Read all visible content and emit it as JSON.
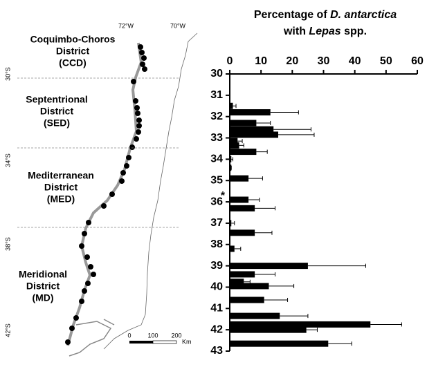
{
  "chart_data": {
    "type": "bar",
    "orientation": "horizontal",
    "title": {
      "line1": [
        "Percentage of ",
        "D. antarctica"
      ],
      "line2": [
        "with ",
        "Lepas",
        " spp."
      ]
    },
    "annotation": "*",
    "annotation_y": 35.6,
    "y": [
      31.5,
      31.8,
      32.3,
      32.6,
      32.85,
      33.15,
      33.35,
      33.65,
      34.0,
      34.4,
      34.9,
      35.9,
      36.3,
      37.0,
      37.45,
      38.2,
      39.0,
      39.4,
      39.75,
      39.95,
      40.6,
      41.35,
      41.75,
      42.0,
      42.65
    ],
    "values": [
      1,
      13,
      8.5,
      14,
      15.5,
      2.5,
      3,
      8.5,
      0.5,
      0.5,
      6,
      6,
      8,
      0.5,
      8,
      1.5,
      25,
      8,
      4.5,
      12.5,
      11,
      16,
      45,
      24.5,
      31.5
    ],
    "errors": [
      1,
      9,
      4.5,
      12,
      11.5,
      1.5,
      1.5,
      3.5,
      0.5,
      0,
      4.5,
      3.5,
      6.5,
      1,
      5.5,
      2,
      18.5,
      6.5,
      2,
      8,
      7.5,
      9,
      10,
      3.5,
      7.5
    ],
    "color": "#000000",
    "xlim": [
      0,
      60
    ],
    "xticks": [
      0,
      10,
      20,
      30,
      40,
      50,
      60
    ],
    "ylim": [
      30,
      43
    ],
    "yticks": [
      30,
      31,
      32,
      33,
      34,
      35,
      36,
      37,
      38,
      39,
      40,
      41,
      42,
      43
    ]
  },
  "map": {
    "districts": [
      [
        "Coquimbo-Choros",
        "District",
        "(CCD)"
      ],
      [
        "Septentrional",
        "District",
        "(SED)"
      ],
      [
        "Mediterranean",
        "District",
        "(MED)"
      ],
      [
        "Meridional",
        "District",
        "(MD)"
      ]
    ],
    "lat_labels": [
      "30°S",
      "34°S",
      "38°S",
      "42°S"
    ],
    "lon_labels": [
      "72°W",
      "70°W"
    ],
    "scale": [
      "0",
      "100",
      "200",
      "Km"
    ]
  }
}
